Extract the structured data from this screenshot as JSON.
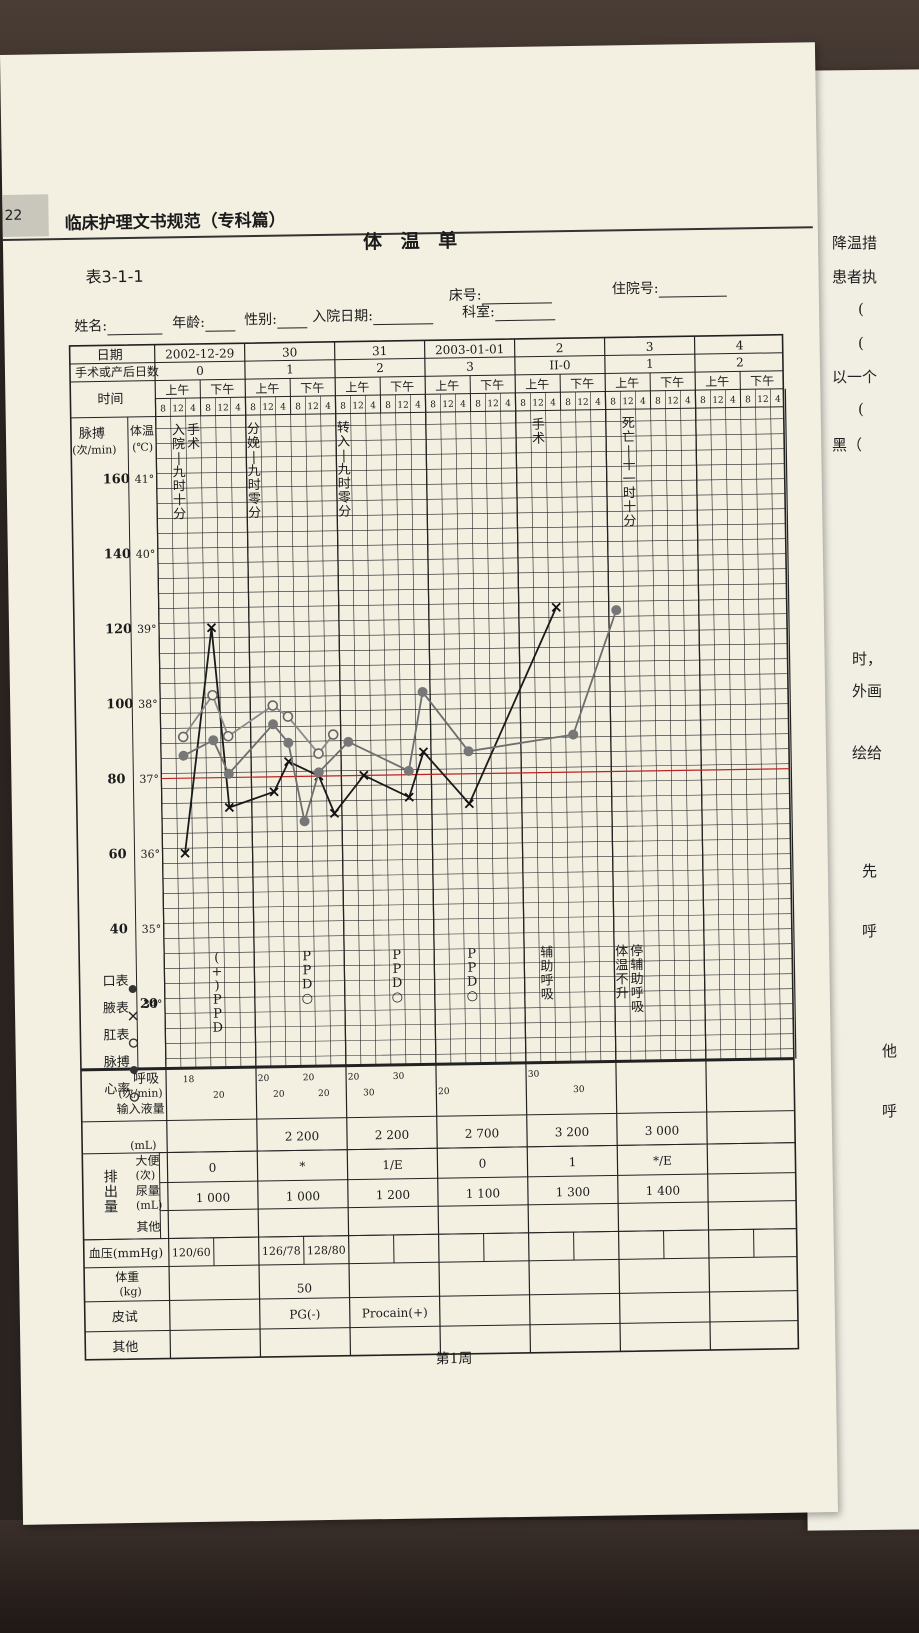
{
  "running_header": {
    "page_number": "22",
    "book_title": "临床护理文书规范（专科篇）"
  },
  "form": {
    "title": "体 温 单",
    "table_number": "表3-1-1",
    "fields": {
      "name": "姓名:",
      "age": "年龄:",
      "sex": "性别:",
      "admit_date": "入院日期:",
      "department": "科室:",
      "bed": "床号:",
      "inpatient_no": "住院号:"
    }
  },
  "row_labels": {
    "date": "日期",
    "op_days": "手术或产后日数",
    "time": "时间",
    "pulse_head": "脉搏",
    "pulse_unit": "(次/min)",
    "temp_head": "体温",
    "temp_unit": "(℃)",
    "resp": "呼吸",
    "resp_unit": "(次/min)",
    "intake": "输入液量",
    "intake_unit": "(mL)",
    "output": "排出量",
    "stool": "大便",
    "stool_unit": "(次)",
    "urine": "尿量",
    "urine_unit": "(mL)",
    "other_out": "其他",
    "bp": "血压(mmHg)",
    "weight": "体重",
    "weight_unit": "(kg)",
    "skin_test": "皮试",
    "other": "其他"
  },
  "days": [
    {
      "date": "2002-12-29",
      "op_day": "0",
      "intake": "",
      "stool": "0",
      "urine": "1 000",
      "weight": "",
      "skin_test": ""
    },
    {
      "date": "30",
      "op_day": "1",
      "intake": "2 200",
      "stool": "*",
      "urine": "1 000",
      "weight": "50",
      "skin_test": "PG(-)"
    },
    {
      "date": "31",
      "op_day": "2",
      "intake": "2 200",
      "stool": "1/E",
      "urine": "1 200",
      "weight": "",
      "skin_test": "Procain(+)"
    },
    {
      "date": "2003-01-01",
      "op_day": "3",
      "intake": "2 700",
      "stool": "0",
      "urine": "1 100",
      "weight": "",
      "skin_test": ""
    },
    {
      "date": "2",
      "op_day": "II-0",
      "intake": "3 200",
      "stool": "1",
      "urine": "1 300",
      "weight": "",
      "skin_test": ""
    },
    {
      "date": "3",
      "op_day": "1",
      "intake": "3 000",
      "stool": "*/E",
      "urine": "1 400",
      "weight": "",
      "skin_test": ""
    },
    {
      "date": "4",
      "op_day": "2",
      "intake": "",
      "stool": "",
      "urine": "",
      "weight": "",
      "skin_test": ""
    }
  ],
  "ampm": {
    "am": "上午",
    "pm": "下午"
  },
  "time_slots": [
    "8",
    "12",
    "4",
    "8",
    "12",
    "4"
  ],
  "bp_values": [
    "120/60",
    "126/78",
    "128/80"
  ],
  "pulse_ticks": [
    "160",
    "140",
    "120",
    "100",
    "80",
    "60",
    "40"
  ],
  "temp_ticks": [
    "41°",
    "40°",
    "39°",
    "38°",
    "37°",
    "36°",
    "35°",
    "34°"
  ],
  "pulse_extra_tick": "20",
  "legend": [
    {
      "label": "口表",
      "symbol": "filled-dot"
    },
    {
      "label": "腋表",
      "symbol": "cross"
    },
    {
      "label": "肛表",
      "symbol": "open-circle"
    },
    {
      "label": "脉搏",
      "symbol": "filled-dot"
    },
    {
      "label": "心率",
      "symbol": "open-circle"
    }
  ],
  "events_top": [
    {
      "slot": 1,
      "text": "入院—九时十分"
    },
    {
      "slot": 2,
      "text": "手术"
    },
    {
      "slot": 6,
      "text": "分娩—九时零分"
    },
    {
      "slot": 12,
      "text": "转入—九时零分"
    },
    {
      "slot": 25,
      "text": "手术"
    },
    {
      "slot": 31,
      "text": "死亡—十一时十分"
    }
  ],
  "events_mid": [
    {
      "slot": 3,
      "text": "(+)PPD"
    },
    {
      "slot": 9,
      "text": "PPD○"
    },
    {
      "slot": 15,
      "text": "PPD○"
    },
    {
      "slot": 20,
      "text": "PPD○"
    },
    {
      "slot": 25,
      "text": "辅助呼吸"
    },
    {
      "slot": 30,
      "text": "体温不升"
    },
    {
      "slot": 31,
      "text": "停辅助呼吸"
    }
  ],
  "respiration": [
    {
      "slot": 1,
      "value": "18"
    },
    {
      "slot": 3,
      "value": "20"
    },
    {
      "slot": 6,
      "value": "20"
    },
    {
      "slot": 7,
      "value": "20"
    },
    {
      "slot": 9,
      "value": "20"
    },
    {
      "slot": 10,
      "value": "20"
    },
    {
      "slot": 12,
      "value": "20"
    },
    {
      "slot": 13,
      "value": "30"
    },
    {
      "slot": 15,
      "value": "30"
    },
    {
      "slot": 18,
      "value": "20"
    },
    {
      "slot": 24,
      "value": "30"
    },
    {
      "slot": 27,
      "value": "30"
    }
  ],
  "footer": {
    "week": "第1周"
  },
  "right_page_text": [
    "降温措",
    "患者执",
    "(",
    "(",
    "以一个",
    "(",
    "黑（",
    "时，",
    "外画",
    "绘给",
    "先",
    "呼",
    "他",
    "呼"
  ],
  "chart_data": {
    "type": "line",
    "x_unit": "4-hour time slot index (0 = day 1, 8 am)",
    "series": [
      {
        "name": "体温(腋表)",
        "marker": "cross",
        "y_unit": "℃",
        "points": [
          [
            1,
            36.0
          ],
          [
            3,
            39.0
          ],
          [
            4,
            36.6
          ],
          [
            7,
            36.8
          ],
          [
            8,
            37.2
          ],
          [
            10,
            37.0
          ],
          [
            11,
            36.5
          ],
          [
            13,
            37.0
          ],
          [
            16,
            36.7
          ],
          [
            17,
            37.3
          ],
          [
            20,
            36.6
          ],
          [
            26,
            39.2
          ]
        ]
      },
      {
        "name": "脉搏",
        "marker": "filled-dot",
        "y_unit": "次/min",
        "points": [
          [
            1,
            86
          ],
          [
            3,
            90
          ],
          [
            4,
            81
          ],
          [
            7,
            94
          ],
          [
            8,
            89
          ],
          [
            9,
            68
          ],
          [
            10,
            81
          ],
          [
            12,
            89
          ],
          [
            16,
            81
          ],
          [
            17,
            102
          ],
          [
            20,
            86
          ],
          [
            27,
            90
          ],
          [
            30,
            123
          ]
        ]
      },
      {
        "name": "心率",
        "marker": "open-circle",
        "y_unit": "次/min",
        "points": [
          [
            1,
            91
          ],
          [
            3,
            102
          ],
          [
            4,
            91
          ],
          [
            7,
            99
          ],
          [
            8,
            96
          ],
          [
            10,
            86
          ],
          [
            11,
            91
          ]
        ]
      }
    ],
    "y_left": {
      "label": "脉搏(次/min)",
      "range": [
        20,
        180
      ]
    },
    "y_right": {
      "label": "体温(℃)",
      "range": [
        33,
        42
      ]
    }
  }
}
